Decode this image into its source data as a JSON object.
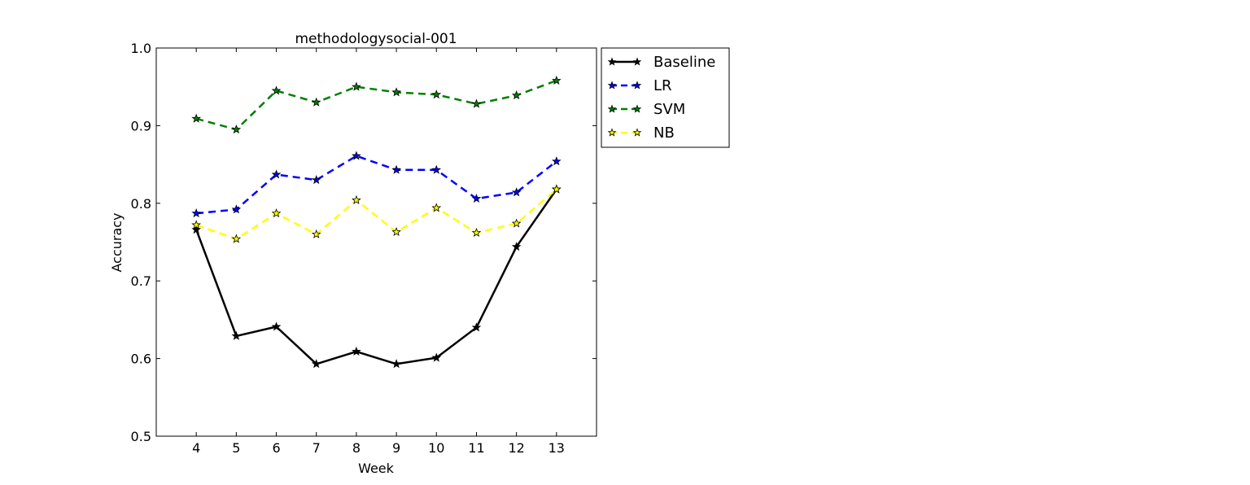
{
  "chart_data": {
    "type": "line",
    "title": "methodologysocial-001",
    "xlabel": "Week",
    "ylabel": "Accuracy",
    "x": [
      4,
      5,
      6,
      7,
      8,
      9,
      10,
      11,
      12,
      13
    ],
    "xlim": [
      3,
      14
    ],
    "ylim": [
      0.5,
      1.0
    ],
    "yticks": [
      "0.5",
      "0.6",
      "0.7",
      "0.8",
      "0.9",
      "1.0"
    ],
    "xticks": [
      "4",
      "5",
      "6",
      "7",
      "8",
      "9",
      "10",
      "11",
      "12",
      "13"
    ],
    "grid": false,
    "legend_position": "outside-top-right",
    "series": [
      {
        "name": "Baseline",
        "color": "#000000",
        "style": "solid",
        "marker_fill": "#000000",
        "values": [
          0.766,
          0.629,
          0.641,
          0.593,
          0.609,
          0.593,
          0.601,
          0.64,
          0.744,
          0.818
        ]
      },
      {
        "name": "LR",
        "color": "#0000ff",
        "style": "dashed",
        "marker_fill": "#0000ff",
        "values": [
          0.787,
          0.792,
          0.837,
          0.83,
          0.861,
          0.843,
          0.843,
          0.806,
          0.814,
          0.854
        ]
      },
      {
        "name": "SVM",
        "color": "#008000",
        "style": "dashed",
        "marker_fill": "#008000",
        "values": [
          0.909,
          0.895,
          0.945,
          0.93,
          0.95,
          0.943,
          0.94,
          0.928,
          0.939,
          0.958
        ]
      },
      {
        "name": "NB",
        "color": "#ffff00",
        "style": "dashed",
        "marker_fill": "#ffff00",
        "values": [
          0.772,
          0.754,
          0.787,
          0.76,
          0.804,
          0.763,
          0.794,
          0.762,
          0.774,
          0.818
        ]
      }
    ]
  }
}
